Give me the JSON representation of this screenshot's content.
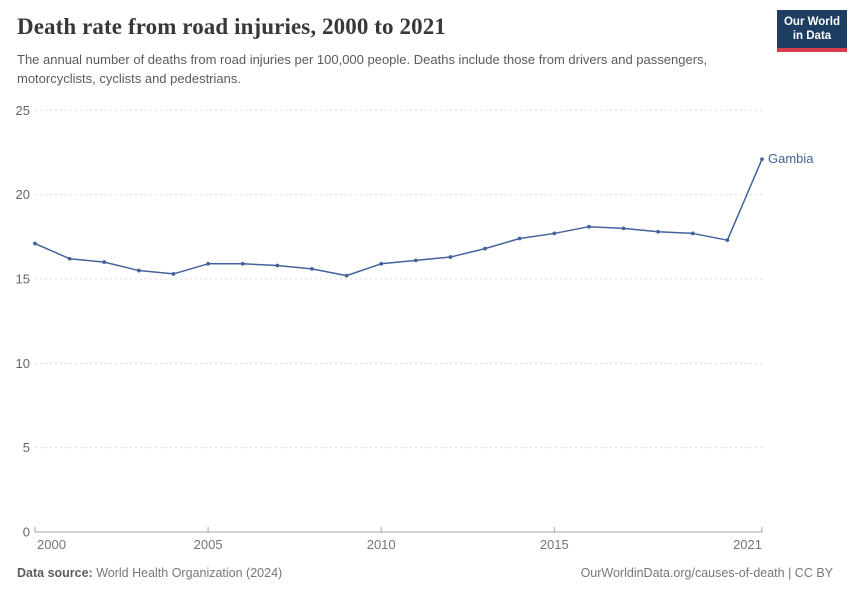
{
  "header": {
    "title": "Death rate from road injuries, 2000 to 2021",
    "subtitle": "The annual number of deaths from road injuries per 100,000 people. Deaths include those from drivers and passengers, motorcyclists, cyclists and pedestrians.",
    "logo": {
      "line1": "Our World",
      "line2": "in Data"
    }
  },
  "footer": {
    "source_label": "Data source:",
    "source_value": " World Health Organization (2024)",
    "attribution": "OurWorldinData.org/causes-of-death | CC BY"
  },
  "colors": {
    "series": "#44639c",
    "grid": "#dcdcdc",
    "axis": "#a6a6a6",
    "y_tick_text": "#666666",
    "x_tick_text": "#757575",
    "logo_bg": "#1d3d63",
    "logo_underline": "#d93a4e"
  },
  "chart_data": {
    "type": "line",
    "title": "Death rate from road injuries, 2000 to 2021",
    "xlabel": "",
    "ylabel": "",
    "xlim": [
      2000,
      2021
    ],
    "ylim": [
      0,
      25
    ],
    "yticks": [
      0,
      5,
      10,
      15,
      20,
      25
    ],
    "xticks": [
      2000,
      2005,
      2010,
      2015,
      2021
    ],
    "grid": "horizontal-dashed",
    "legend_position": "end-of-line-label",
    "x": [
      2000,
      2001,
      2002,
      2003,
      2004,
      2005,
      2006,
      2007,
      2008,
      2009,
      2010,
      2011,
      2012,
      2013,
      2014,
      2015,
      2016,
      2017,
      2018,
      2019,
      2020,
      2021
    ],
    "series": [
      {
        "name": "Gambia",
        "color": "#44639c",
        "values": [
          17.1,
          16.2,
          16.0,
          15.5,
          15.3,
          15.9,
          15.9,
          15.8,
          15.6,
          15.2,
          15.9,
          16.1,
          16.3,
          16.8,
          17.4,
          17.7,
          18.1,
          18.0,
          17.8,
          17.7,
          17.3,
          22.1
        ]
      }
    ]
  }
}
